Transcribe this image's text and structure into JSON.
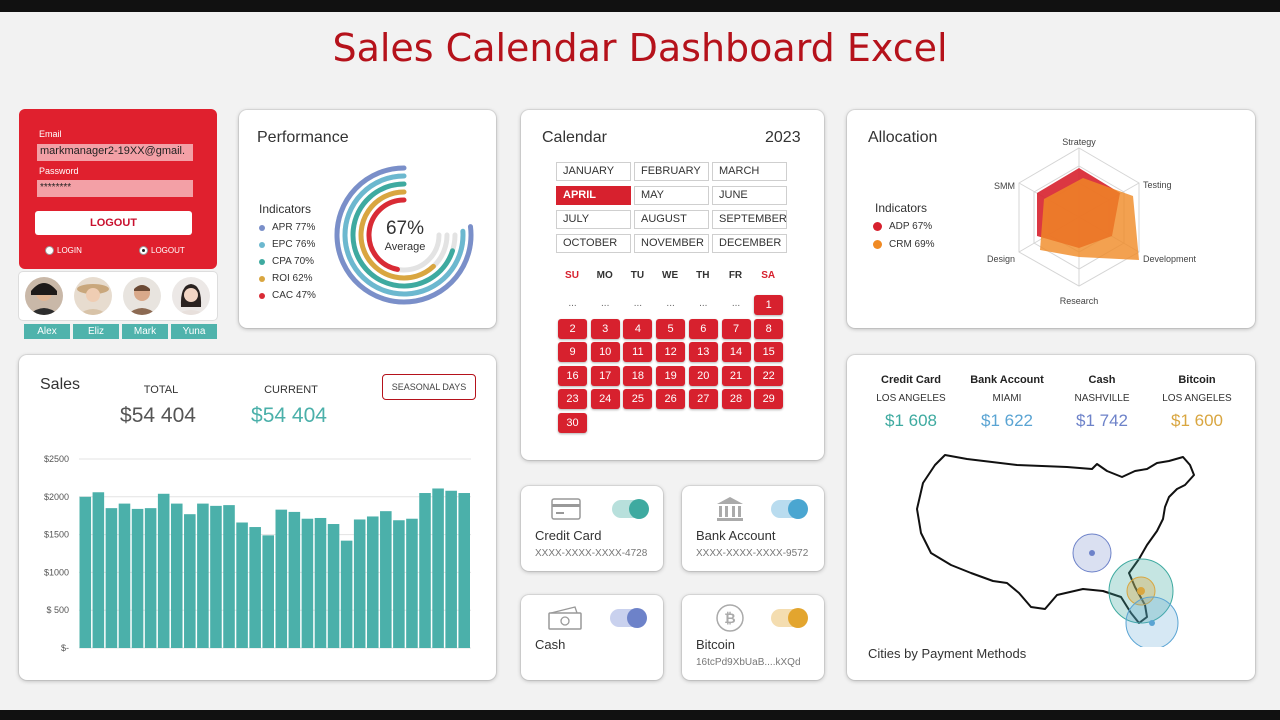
{
  "title": "Sales Calendar Dashboard Excel",
  "login": {
    "email_label": "Email",
    "email_value": "markmanager2-19XX@gmail.",
    "password_label": "Password",
    "password_value": "********",
    "logout_button": "LOGOUT",
    "radio_login": "LOGIN",
    "radio_logout": "LOGOUT"
  },
  "users": [
    "Alex",
    "Eliz",
    "Mark",
    "Yuna"
  ],
  "performance": {
    "title": "Performance",
    "indicators_label": "Indicators",
    "center_value": "67%",
    "center_label": "Average",
    "items": [
      {
        "label": "APR 77%",
        "pct": 77,
        "color": "#7a8fc9"
      },
      {
        "label": "EPC 76%",
        "pct": 76,
        "color": "#6cb8cf"
      },
      {
        "label": "CPA 70%",
        "pct": 70,
        "color": "#3eaaa0"
      },
      {
        "label": "ROI 62%",
        "pct": 62,
        "color": "#d9a640"
      },
      {
        "label": "CAC 47%",
        "pct": 47,
        "color": "#d92b35"
      }
    ]
  },
  "calendar": {
    "title": "Calendar",
    "year": "2023",
    "months": [
      "JANUARY",
      "FEBRUARY",
      "MARCH",
      "APRIL",
      "MAY",
      "JUNE",
      "JULY",
      "AUGUST",
      "SEPTEMBER",
      "OCTOBER",
      "NOVEMBER",
      "DECEMBER"
    ],
    "active_month": "APRIL",
    "weekdays": [
      "SU",
      "MO",
      "TU",
      "WE",
      "TH",
      "FR",
      "SA"
    ],
    "blank_marker": "...",
    "days": [
      "1",
      "2",
      "3",
      "4",
      "5",
      "6",
      "7",
      "8",
      "9",
      "10",
      "11",
      "12",
      "13",
      "14",
      "15",
      "16",
      "17",
      "18",
      "19",
      "20",
      "21",
      "22",
      "23",
      "24",
      "25",
      "26",
      "27",
      "28",
      "29",
      "30"
    ]
  },
  "allocation": {
    "title": "Allocation",
    "indicators_label": "Indicators",
    "axes": [
      "Strategy",
      "Testing",
      "Development",
      "Research",
      "Design",
      "SMM"
    ],
    "items": [
      {
        "label": "ADP 67%",
        "color": "#d7212e"
      },
      {
        "label": "CRM 69%",
        "color": "#f08a24"
      }
    ]
  },
  "sales": {
    "title": "Sales",
    "total_label": "TOTAL",
    "total_value": "$54 404",
    "current_label": "CURRENT",
    "current_value": "$54 404",
    "seasonal_button": "SEASONAL DAYS",
    "bar_color": "#4bb0aa"
  },
  "chart_data": {
    "type": "bar",
    "y_ticks": [
      "$2500",
      "$2000",
      "$1500",
      "$1000",
      "$ 500",
      "$-"
    ],
    "ylim": [
      0,
      2500
    ],
    "values": [
      2000,
      2060,
      1850,
      1910,
      1840,
      1850,
      2040,
      1910,
      1770,
      1910,
      1880,
      1890,
      1660,
      1600,
      1490,
      1830,
      1800,
      1710,
      1720,
      1640,
      1420,
      1700,
      1740,
      1810,
      1690,
      1710,
      2050,
      2110,
      2080,
      2050
    ]
  },
  "payments": [
    {
      "name": "Credit Card",
      "number": "XXXX-XXXX-XXXX-4728",
      "icon": "credit-card-icon",
      "color": "#3eaaa0"
    },
    {
      "name": "Bank Account",
      "number": "XXXX-XXXX-XXXX-9572",
      "icon": "bank-icon",
      "color": "#4aa6d1"
    },
    {
      "name": "Cash",
      "number": "",
      "icon": "cash-icon",
      "color": "#6d82c9"
    },
    {
      "name": "Bitcoin",
      "number": "16tcPd9XbUaB....kXQd",
      "icon": "bitcoin-icon",
      "color": "#e3a52e"
    }
  ],
  "payment_methods": {
    "items": [
      {
        "method": "Credit Card",
        "city": "LOS ANGELES",
        "value": "$1 608",
        "color": "#3eaaa0"
      },
      {
        "method": "Bank Account",
        "city": "MIAMI",
        "value": "$1 622",
        "color": "#5aa4d3"
      },
      {
        "method": "Cash",
        "city": "NASHVILLE",
        "value": "$1 742",
        "color": "#6d82c9"
      },
      {
        "method": "Bitcoin",
        "city": "LOS ANGELES",
        "value": "$1 600",
        "color": "#d9a640"
      }
    ],
    "map_caption": "Cities by Payment Methods"
  }
}
